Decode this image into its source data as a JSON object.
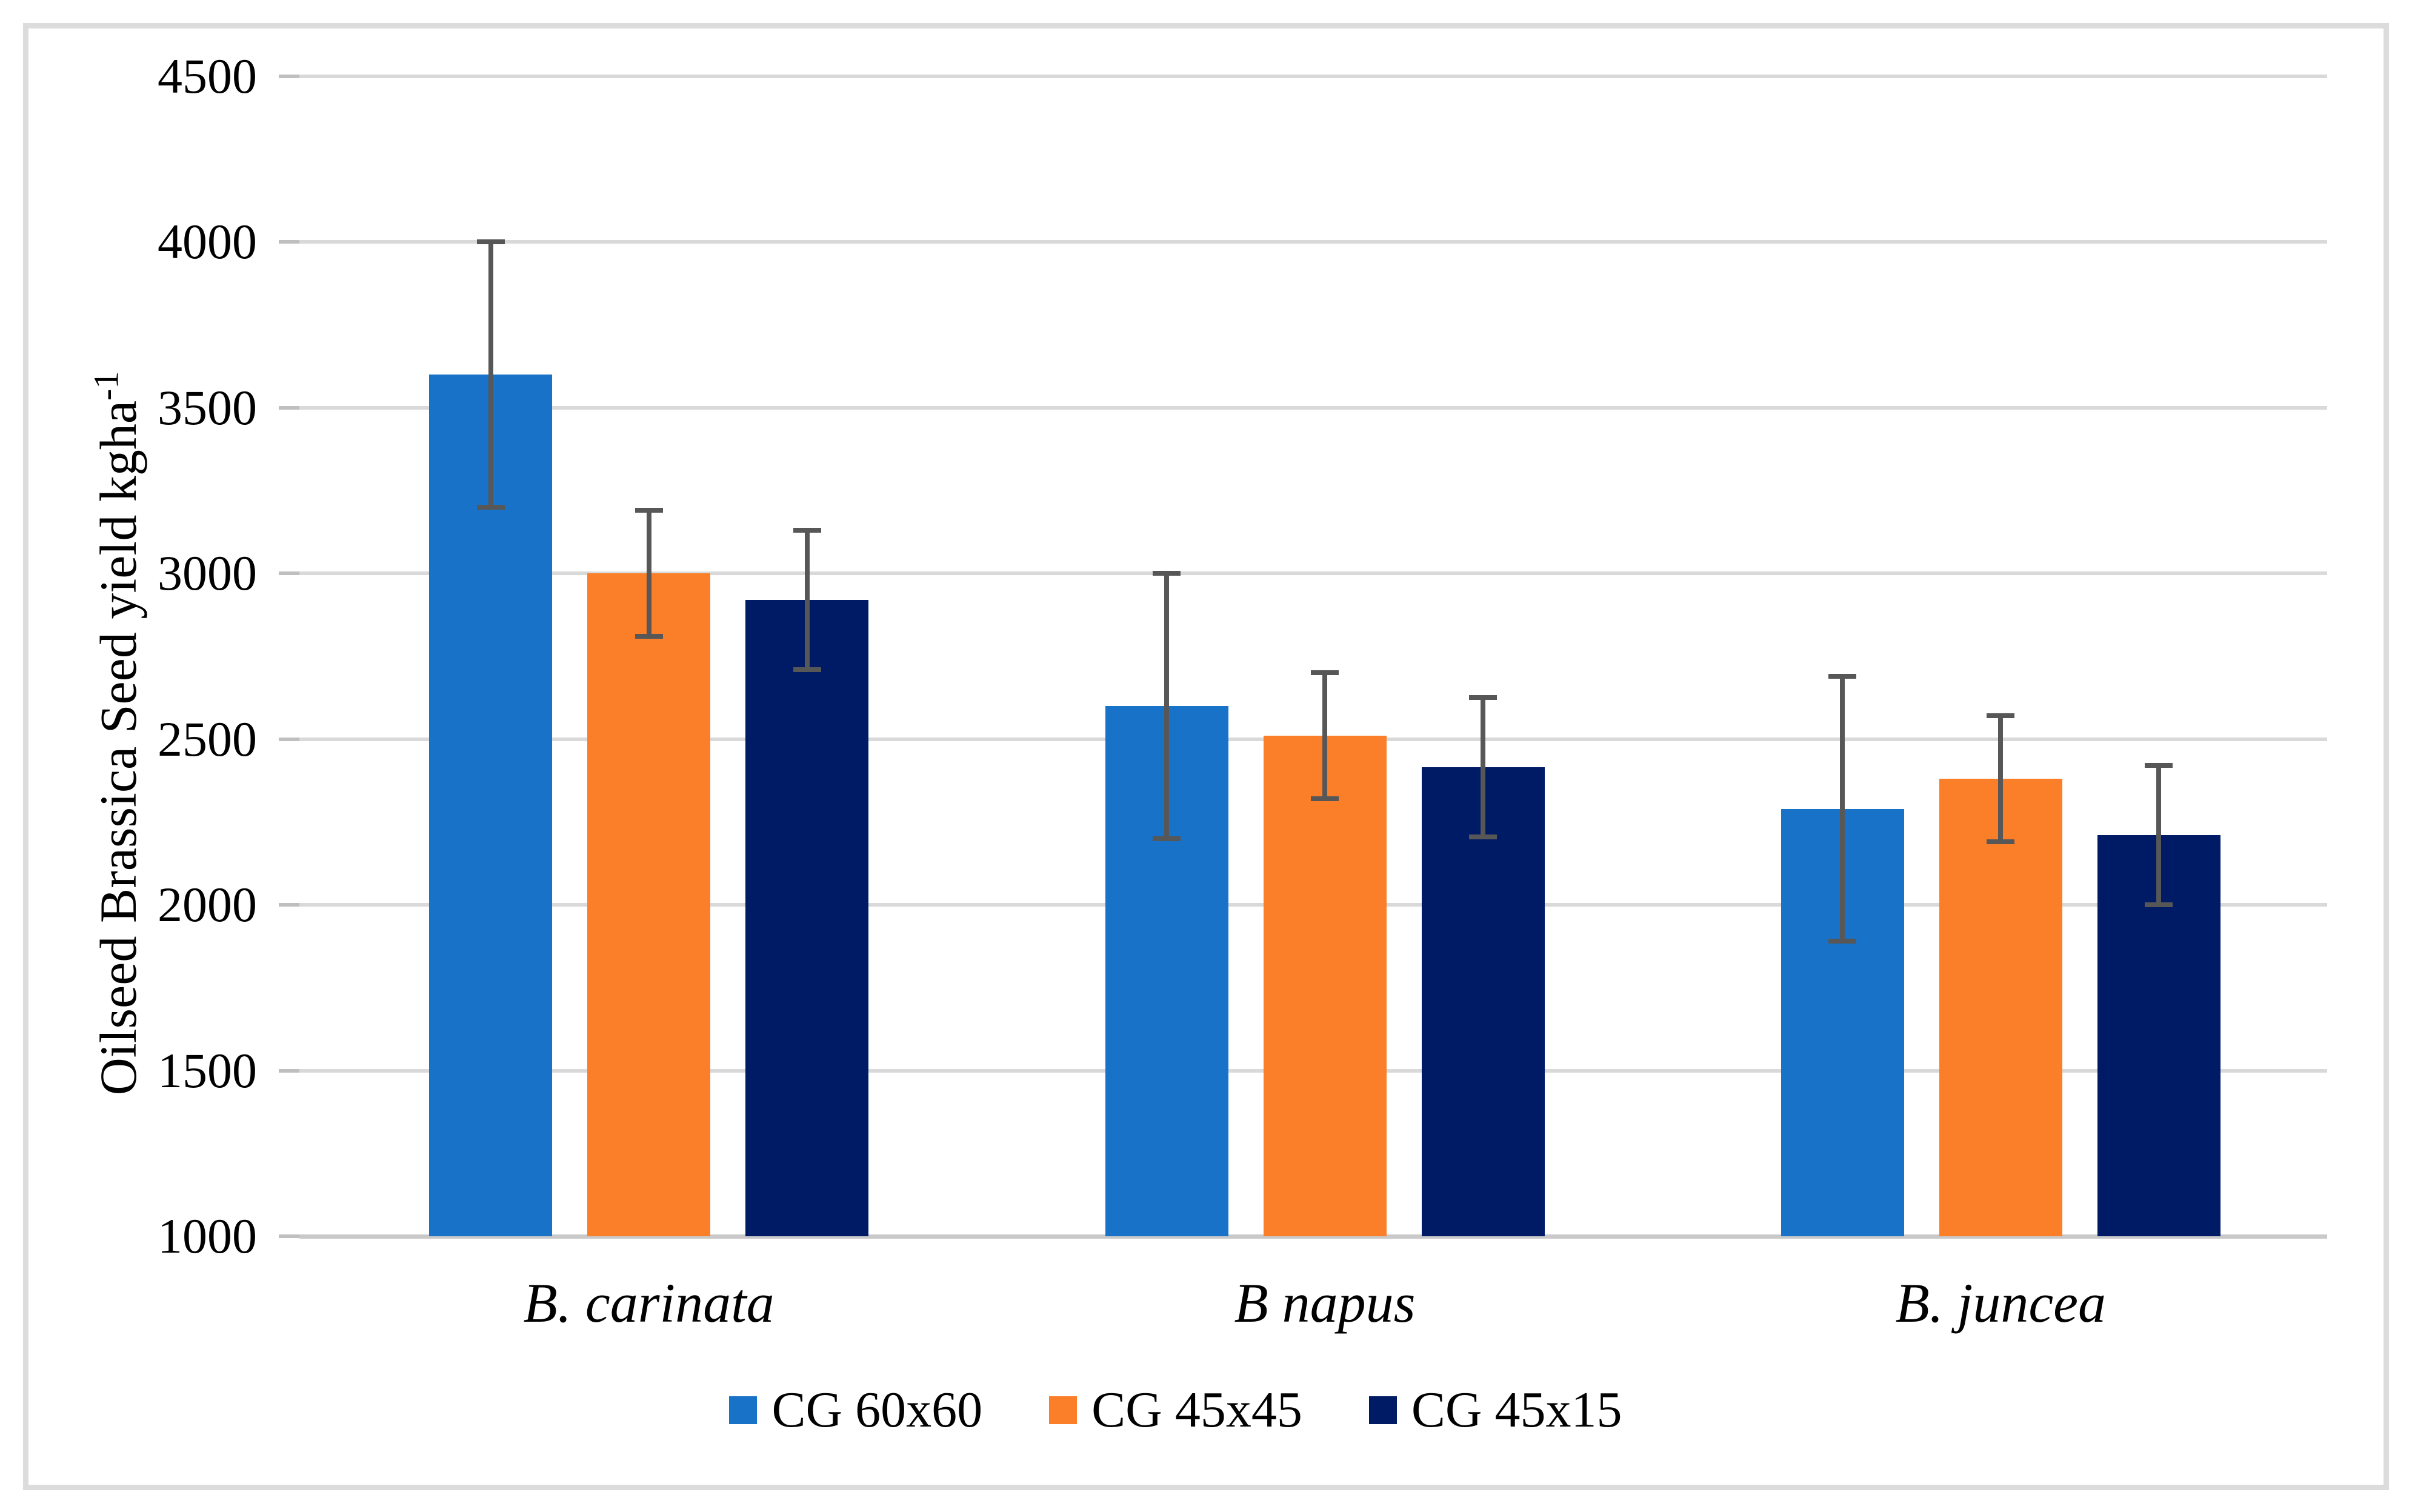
{
  "chart_data": {
    "type": "bar",
    "title": "",
    "ylabel_main": "Oilseed Brassica Seed yield kgha",
    "ylabel_superscript": "-1",
    "xlabel": "",
    "categories": [
      "B. carinata",
      "B napus",
      "B. juncea"
    ],
    "series": [
      {
        "name": "CG 60x60",
        "color": "#1772C8",
        "values": [
          3600,
          2600,
          2290
        ],
        "error": 400
      },
      {
        "name": "CG 45x45",
        "color": "#FB7E28",
        "values": [
          3000,
          2510,
          2380
        ],
        "error": 190
      },
      {
        "name": "CG 45x15",
        "color": "#001B66",
        "values": [
          2920,
          2415,
          2210
        ],
        "error": 210
      }
    ],
    "y_axis": {
      "min": 1000,
      "max": 4500,
      "step": 500,
      "ticks": [
        4500,
        4000,
        3500,
        3000,
        2500,
        2000,
        1500,
        1000
      ]
    },
    "grid": true,
    "legend_position": "bottom",
    "style": {
      "background": "#FFFFFF",
      "border_color": "#DCDCDC",
      "gridline_color": "#D9D9D9",
      "axis_line_color": "#C9C9C9",
      "tick_mark_color": "#BFBFBF",
      "error_bar_color": "#575757",
      "text_color": "#000000"
    }
  }
}
